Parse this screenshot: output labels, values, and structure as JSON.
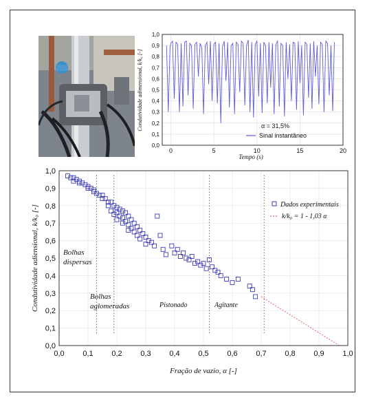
{
  "top_chart": {
    "ylabel": "Condutividade adimensional, k/k₀ [-]",
    "xlabel": "Tempo (s)",
    "y_ticks": [
      "0,0",
      "0,1",
      "0,2",
      "0,3",
      "0,4",
      "0,5",
      "0,6",
      "0,7",
      "0,8",
      "0,9",
      "1,0"
    ],
    "x_ticks": [
      "0",
      "5",
      "10",
      "15",
      "20"
    ],
    "annotation": "α = 31,5%",
    "legend_label": "Sinal instantâneo",
    "line_color": "#5b5bd6"
  },
  "main_chart": {
    "ylabel": "Condutividade adiensional, k/k₀ [-]",
    "xlabel": "Fração de vazio, α  [-]",
    "y_ticks": [
      "0,0",
      "0,1",
      "0,2",
      "0,3",
      "0,4",
      "0,5",
      "0,6",
      "0,7",
      "0,8",
      "0,9",
      "1,0"
    ],
    "x_ticks": [
      "0,0",
      "0,1",
      "0,2",
      "0,3",
      "0,4",
      "0,5",
      "0,6",
      "0,7",
      "0,8",
      "0,9",
      "1,0"
    ],
    "legend_data": "Dados experimentais",
    "legend_fit": "k/k₀ = 1 - 1,03 α",
    "region_bolhas_dispersas_1": "Bolhas",
    "region_bolhas_dispersas_2": "dispersas",
    "region_bolhas_aglomeradas_1": "Bolhas",
    "region_bolhas_aglomeradas_2": "aglomeradas",
    "region_pistonado": "Pistonado",
    "region_agitante": "Agitante",
    "marker_color": "#3a3ab8",
    "fit_color": "#e06060"
  },
  "chart_data": [
    {
      "type": "line",
      "xlabel": "Tempo (s)",
      "ylabel": "Condutividade adimensional, k/k₀ [-]",
      "xlim": [
        -1,
        20
      ],
      "ylim": [
        0,
        1.0
      ],
      "series": [
        {
          "name": "Sinal instantâneo",
          "x": [
            -0.5,
            -0.3,
            -0.1,
            0.0,
            0.2,
            0.4,
            0.6,
            0.8,
            1.0,
            1.2,
            1.4,
            1.6,
            1.8,
            2.0,
            2.2,
            2.4,
            2.6,
            2.8,
            3.0,
            3.2,
            3.4,
            3.6,
            3.8,
            4.0,
            4.2,
            4.4,
            4.6,
            4.8,
            5.0,
            5.2,
            5.4,
            5.6,
            5.8,
            6.0,
            6.2,
            6.4,
            6.6,
            6.8,
            7.0,
            7.2,
            7.4,
            7.6,
            7.8,
            8.0,
            8.2,
            8.4,
            8.6,
            8.8,
            9.0,
            9.2,
            9.4,
            9.6,
            9.8,
            10.0,
            10.2,
            10.4,
            10.6,
            10.8,
            11.0,
            11.2,
            11.4,
            11.6,
            11.8,
            12.0,
            12.2,
            12.4,
            12.6,
            12.8,
            13.0,
            13.2,
            13.4,
            13.6,
            13.8,
            14.0,
            14.2,
            14.4,
            14.6,
            14.8,
            15.0,
            15.2,
            15.4,
            15.6,
            15.8,
            16.0,
            16.2,
            16.4,
            16.6,
            16.8,
            17.0,
            17.2,
            17.4,
            17.6,
            17.8,
            18.0,
            18.2,
            18.4,
            18.6,
            18.8,
            19.0
          ],
          "values": [
            0.9,
            0.3,
            0.88,
            0.92,
            0.94,
            0.42,
            0.93,
            0.91,
            0.3,
            0.92,
            0.35,
            0.93,
            0.94,
            0.45,
            0.92,
            0.9,
            0.33,
            0.91,
            0.93,
            0.62,
            0.92,
            0.88,
            0.28,
            0.9,
            0.93,
            0.55,
            0.94,
            0.4,
            0.91,
            0.93,
            0.38,
            0.92,
            0.2,
            0.89,
            0.94,
            0.58,
            0.93,
            0.34,
            0.9,
            0.92,
            0.28,
            0.93,
            0.91,
            0.48,
            0.94,
            0.92,
            0.36,
            0.9,
            0.95,
            0.3,
            0.93,
            0.25,
            0.91,
            0.94,
            0.44,
            0.92,
            0.29,
            0.93,
            0.9,
            0.38,
            0.93,
            0.52,
            0.92,
            0.28,
            0.91,
            0.94,
            0.35,
            0.92,
            0.9,
            0.26,
            0.93,
            0.6,
            0.91,
            0.4,
            0.93,
            0.92,
            0.32,
            0.94,
            0.56,
            0.9,
            0.27,
            0.93,
            0.91,
            0.43,
            0.92,
            0.33,
            0.94,
            0.62,
            0.9,
            0.37,
            0.93,
            0.91,
            0.3,
            0.94,
            0.92,
            0.45,
            0.9,
            0.31,
            0.93
          ]
        }
      ],
      "annotations": [
        "α = 31,5%"
      ]
    },
    {
      "type": "scatter",
      "xlabel": "Fração de vazio, α  [-]",
      "ylabel": "Condutividade adiensional, k/k₀ [-]",
      "xlim": [
        0,
        1.0
      ],
      "ylim": [
        0,
        1.0
      ],
      "legend_position": "right",
      "series": [
        {
          "name": "Dados experimentais",
          "x": [
            0.03,
            0.04,
            0.05,
            0.05,
            0.06,
            0.07,
            0.07,
            0.08,
            0.09,
            0.1,
            0.1,
            0.11,
            0.12,
            0.12,
            0.13,
            0.14,
            0.15,
            0.15,
            0.16,
            0.17,
            0.17,
            0.18,
            0.18,
            0.19,
            0.19,
            0.2,
            0.2,
            0.2,
            0.21,
            0.21,
            0.22,
            0.22,
            0.22,
            0.23,
            0.23,
            0.24,
            0.24,
            0.24,
            0.25,
            0.25,
            0.26,
            0.26,
            0.27,
            0.27,
            0.28,
            0.28,
            0.29,
            0.3,
            0.3,
            0.31,
            0.32,
            0.33,
            0.34,
            0.35,
            0.36,
            0.37,
            0.39,
            0.4,
            0.41,
            0.42,
            0.43,
            0.44,
            0.45,
            0.46,
            0.47,
            0.48,
            0.49,
            0.5,
            0.51,
            0.52,
            0.53,
            0.54,
            0.55,
            0.56,
            0.58,
            0.6,
            0.62,
            0.66,
            0.67,
            0.68
          ],
          "values": [
            0.97,
            0.96,
            0.96,
            0.94,
            0.95,
            0.94,
            0.93,
            0.93,
            0.92,
            0.91,
            0.9,
            0.9,
            0.89,
            0.88,
            0.87,
            0.86,
            0.86,
            0.84,
            0.84,
            0.82,
            0.8,
            0.82,
            0.77,
            0.8,
            0.75,
            0.79,
            0.76,
            0.72,
            0.78,
            0.74,
            0.77,
            0.73,
            0.7,
            0.76,
            0.71,
            0.74,
            0.69,
            0.66,
            0.72,
            0.67,
            0.7,
            0.65,
            0.68,
            0.63,
            0.66,
            0.61,
            0.64,
            0.62,
            0.58,
            0.6,
            0.59,
            0.57,
            0.74,
            0.63,
            0.55,
            0.52,
            0.57,
            0.53,
            0.55,
            0.51,
            0.53,
            0.5,
            0.49,
            0.51,
            0.47,
            0.48,
            0.46,
            0.47,
            0.44,
            0.49,
            0.45,
            0.43,
            0.42,
            0.4,
            0.38,
            0.36,
            0.38,
            0.34,
            0.32,
            0.28
          ]
        },
        {
          "name": "k/k₀ = 1 - 1,03 α",
          "type": "line",
          "x": [
            0.7,
            0.97
          ],
          "values": [
            0.279,
            0.0009
          ]
        }
      ],
      "regions": [
        "Bolhas dispersas",
        "Bolhas aglomeradas",
        "Pistonado",
        "Agitante"
      ],
      "vlines_x": [
        0.13,
        0.19,
        0.52,
        0.71
      ]
    }
  ]
}
